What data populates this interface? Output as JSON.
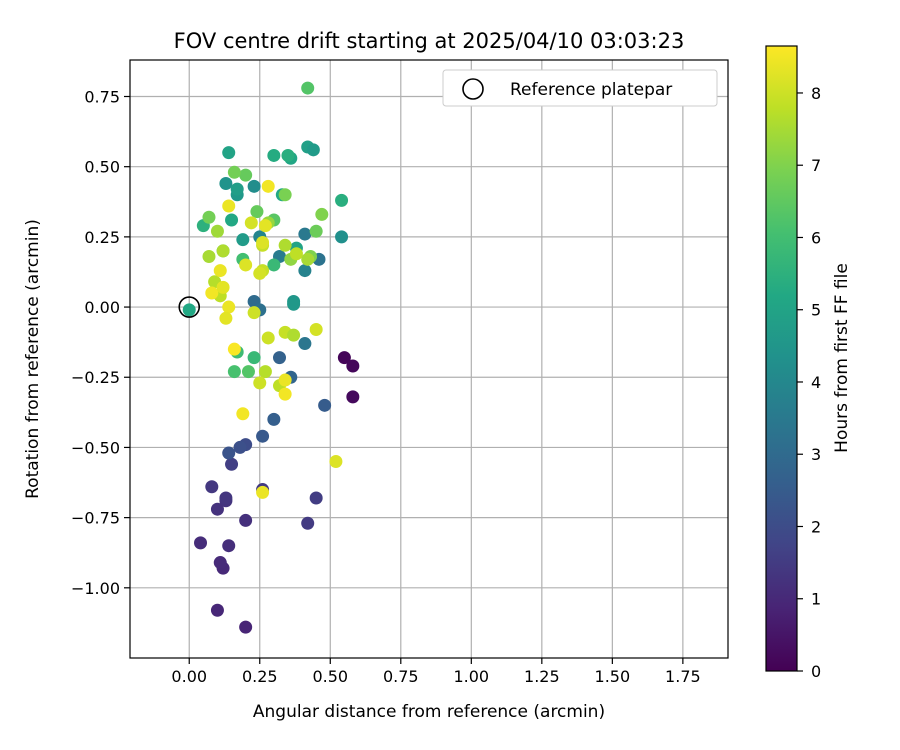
{
  "chart_data": {
    "type": "scatter",
    "title": "FOV centre drift starting at 2025/04/10 03:03:23",
    "xlabel": "Angular distance from reference (arcmin)",
    "ylabel": "Rotation from reference (arcmin)",
    "xlim": [
      -0.21,
      1.91
    ],
    "ylim": [
      -1.25,
      0.88
    ],
    "xticks": [
      0.0,
      0.25,
      0.5,
      0.75,
      1.0,
      1.25,
      1.5,
      1.75
    ],
    "xtick_labels": [
      "0.00",
      "0.25",
      "0.50",
      "0.75",
      "1.00",
      "1.25",
      "1.50",
      "1.75"
    ],
    "yticks": [
      0.75,
      0.5,
      0.25,
      0.0,
      -0.25,
      -0.5,
      -0.75,
      -1.0
    ],
    "ytick_labels": [
      "0.75",
      "0.50",
      "0.25",
      "0.00",
      "−0.25",
      "−0.50",
      "−0.75",
      "−1.00"
    ],
    "grid": true,
    "legend": {
      "position": "top-right",
      "entries": [
        {
          "label": "Reference platepar",
          "marker": "open-circle"
        }
      ]
    },
    "reference_point": {
      "x": 0.0,
      "y": 0.0
    },
    "colorbar": {
      "label": "Hours from first FF file",
      "colormap": "viridis",
      "range": [
        0,
        8.65
      ],
      "ticks": [
        0,
        1,
        2,
        3,
        4,
        5,
        6,
        7,
        8
      ],
      "tick_labels": [
        "0",
        "1",
        "2",
        "3",
        "4",
        "5",
        "6",
        "7",
        "8"
      ]
    },
    "series": [
      {
        "points": [
          {
            "x": 0.55,
            "y": -0.18,
            "c": 0.1
          },
          {
            "x": 0.58,
            "y": -0.21,
            "c": 0.15
          },
          {
            "x": 0.58,
            "y": -0.32,
            "c": 0.2
          },
          {
            "x": 0.2,
            "y": -1.14,
            "c": 0.9
          },
          {
            "x": 0.1,
            "y": -1.08,
            "c": 0.95
          },
          {
            "x": 0.12,
            "y": -0.93,
            "c": 1.0
          },
          {
            "x": 0.11,
            "y": -0.91,
            "c": 1.05
          },
          {
            "x": 0.04,
            "y": -0.84,
            "c": 1.1
          },
          {
            "x": 0.14,
            "y": -0.85,
            "c": 1.15
          },
          {
            "x": 0.2,
            "y": -0.76,
            "c": 1.2
          },
          {
            "x": 0.1,
            "y": -0.72,
            "c": 1.25
          },
          {
            "x": 0.13,
            "y": -0.69,
            "c": 1.3
          },
          {
            "x": 0.13,
            "y": -0.68,
            "c": 1.35
          },
          {
            "x": 0.08,
            "y": -0.64,
            "c": 1.4
          },
          {
            "x": 0.26,
            "y": -0.65,
            "c": 1.45
          },
          {
            "x": 0.42,
            "y": -0.77,
            "c": 1.5
          },
          {
            "x": 0.45,
            "y": -0.68,
            "c": 1.55
          },
          {
            "x": 0.15,
            "y": -0.56,
            "c": 1.6
          },
          {
            "x": 0.2,
            "y": -0.49,
            "c": 2.0
          },
          {
            "x": 0.18,
            "y": -0.5,
            "c": 2.1
          },
          {
            "x": 0.14,
            "y": -0.52,
            "c": 2.2
          },
          {
            "x": 0.26,
            "y": -0.46,
            "c": 2.4
          },
          {
            "x": 0.3,
            "y": -0.4,
            "c": 2.6
          },
          {
            "x": 0.48,
            "y": -0.35,
            "c": 2.5
          },
          {
            "x": 0.32,
            "y": -0.18,
            "c": 2.7
          },
          {
            "x": 0.36,
            "y": -0.25,
            "c": 2.8
          },
          {
            "x": 0.23,
            "y": 0.02,
            "c": 3.0
          },
          {
            "x": 0.25,
            "y": -0.01,
            "c": 3.2
          },
          {
            "x": 0.41,
            "y": -0.13,
            "c": 3.4
          },
          {
            "x": 0.37,
            "y": 0.02,
            "c": 4.5
          },
          {
            "x": 0.37,
            "y": 0.01,
            "c": 4.6
          },
          {
            "x": 0.46,
            "y": 0.17,
            "c": 3.3
          },
          {
            "x": 0.41,
            "y": 0.13,
            "c": 3.8
          },
          {
            "x": 0.41,
            "y": 0.26,
            "c": 3.5
          },
          {
            "x": 0.32,
            "y": 0.18,
            "c": 3.6
          },
          {
            "x": 0.25,
            "y": 0.25,
            "c": 3.9
          },
          {
            "x": 0.19,
            "y": 0.24,
            "c": 4.7
          },
          {
            "x": 0.23,
            "y": 0.43,
            "c": 4.2
          },
          {
            "x": 0.13,
            "y": 0.44,
            "c": 4.4
          },
          {
            "x": 0.17,
            "y": 0.4,
            "c": 4.6
          },
          {
            "x": 0.17,
            "y": 0.42,
            "c": 4.8
          },
          {
            "x": 0.14,
            "y": 0.55,
            "c": 5.0
          },
          {
            "x": 0.42,
            "y": 0.57,
            "c": 4.9
          },
          {
            "x": 0.44,
            "y": 0.56,
            "c": 4.7
          },
          {
            "x": 0.33,
            "y": 0.4,
            "c": 5.2
          },
          {
            "x": 0.36,
            "y": 0.53,
            "c": 5.1
          },
          {
            "x": 0.3,
            "y": 0.54,
            "c": 5.3
          },
          {
            "x": 0.35,
            "y": 0.54,
            "c": 5.4
          },
          {
            "x": 0.38,
            "y": 0.21,
            "c": 5.0
          },
          {
            "x": 0.15,
            "y": 0.31,
            "c": 5.2
          },
          {
            "x": 0.05,
            "y": 0.29,
            "c": 5.5
          },
          {
            "x": 0.54,
            "y": 0.25,
            "c": 4.3
          },
          {
            "x": 0.54,
            "y": 0.38,
            "c": 5.4
          },
          {
            "x": 0.0,
            "y": -0.01,
            "c": 5.2
          },
          {
            "x": 0.3,
            "y": 0.15,
            "c": 5.8
          },
          {
            "x": 0.19,
            "y": 0.17,
            "c": 6.0
          },
          {
            "x": 0.12,
            "y": 0.2,
            "c": 6.0
          },
          {
            "x": 0.23,
            "y": -0.18,
            "c": 5.8
          },
          {
            "x": 0.17,
            "y": -0.16,
            "c": 5.9
          },
          {
            "x": 0.16,
            "y": -0.23,
            "c": 6.1
          },
          {
            "x": 0.21,
            "y": -0.23,
            "c": 6.3
          },
          {
            "x": 0.42,
            "y": 0.78,
            "c": 6.3
          },
          {
            "x": 0.3,
            "y": 0.31,
            "c": 6.4
          },
          {
            "x": 0.24,
            "y": 0.34,
            "c": 6.6
          },
          {
            "x": 0.2,
            "y": 0.47,
            "c": 6.6
          },
          {
            "x": 0.16,
            "y": 0.48,
            "c": 6.8
          },
          {
            "x": 0.07,
            "y": 0.32,
            "c": 6.8
          },
          {
            "x": 0.34,
            "y": 0.4,
            "c": 6.9
          },
          {
            "x": 0.45,
            "y": 0.27,
            "c": 6.7
          },
          {
            "x": 0.47,
            "y": 0.33,
            "c": 7.0
          },
          {
            "x": 0.43,
            "y": 0.18,
            "c": 7.0
          },
          {
            "x": 0.36,
            "y": 0.17,
            "c": 7.2
          },
          {
            "x": 0.28,
            "y": 0.3,
            "c": 7.3
          },
          {
            "x": 0.1,
            "y": 0.27,
            "c": 7.4
          },
          {
            "x": 0.07,
            "y": 0.18,
            "c": 7.5
          },
          {
            "x": 0.12,
            "y": 0.2,
            "c": 7.6
          },
          {
            "x": 0.09,
            "y": 0.09,
            "c": 7.7
          },
          {
            "x": 0.11,
            "y": 0.04,
            "c": 7.8
          },
          {
            "x": 0.26,
            "y": 0.22,
            "c": 7.9
          },
          {
            "x": 0.34,
            "y": 0.22,
            "c": 7.6
          },
          {
            "x": 0.42,
            "y": 0.17,
            "c": 7.5
          },
          {
            "x": 0.38,
            "y": 0.19,
            "c": 7.8
          },
          {
            "x": 0.26,
            "y": 0.13,
            "c": 7.9
          },
          {
            "x": 0.22,
            "y": 0.3,
            "c": 8.1
          },
          {
            "x": 0.26,
            "y": 0.23,
            "c": 8.2
          },
          {
            "x": 0.27,
            "y": 0.29,
            "c": 8.3
          },
          {
            "x": 0.2,
            "y": 0.15,
            "c": 8.2
          },
          {
            "x": 0.25,
            "y": 0.12,
            "c": 8.1
          },
          {
            "x": 0.11,
            "y": 0.13,
            "c": 8.4
          },
          {
            "x": 0.14,
            "y": 0.36,
            "c": 8.4
          },
          {
            "x": 0.28,
            "y": 0.43,
            "c": 8.5
          },
          {
            "x": 0.08,
            "y": 0.05,
            "c": 8.5
          },
          {
            "x": 0.12,
            "y": 0.07,
            "c": 8.3
          },
          {
            "x": 0.14,
            "y": 0.0,
            "c": 8.4
          },
          {
            "x": 0.13,
            "y": -0.04,
            "c": 8.3
          },
          {
            "x": 0.23,
            "y": -0.02,
            "c": 8.0
          },
          {
            "x": 0.34,
            "y": -0.09,
            "c": 7.9
          },
          {
            "x": 0.37,
            "y": -0.1,
            "c": 7.6
          },
          {
            "x": 0.45,
            "y": -0.08,
            "c": 8.1
          },
          {
            "x": 0.28,
            "y": -0.11,
            "c": 8.0
          },
          {
            "x": 0.16,
            "y": -0.15,
            "c": 8.6
          },
          {
            "x": 0.32,
            "y": -0.28,
            "c": 7.8
          },
          {
            "x": 0.27,
            "y": -0.23,
            "c": 7.7
          },
          {
            "x": 0.25,
            "y": -0.27,
            "c": 8.0
          },
          {
            "x": 0.34,
            "y": -0.26,
            "c": 8.4
          },
          {
            "x": 0.34,
            "y": -0.31,
            "c": 8.5
          },
          {
            "x": 0.19,
            "y": -0.38,
            "c": 8.5
          },
          {
            "x": 0.52,
            "y": -0.55,
            "c": 8.2
          },
          {
            "x": 0.26,
            "y": -0.66,
            "c": 8.4
          }
        ]
      }
    ]
  }
}
